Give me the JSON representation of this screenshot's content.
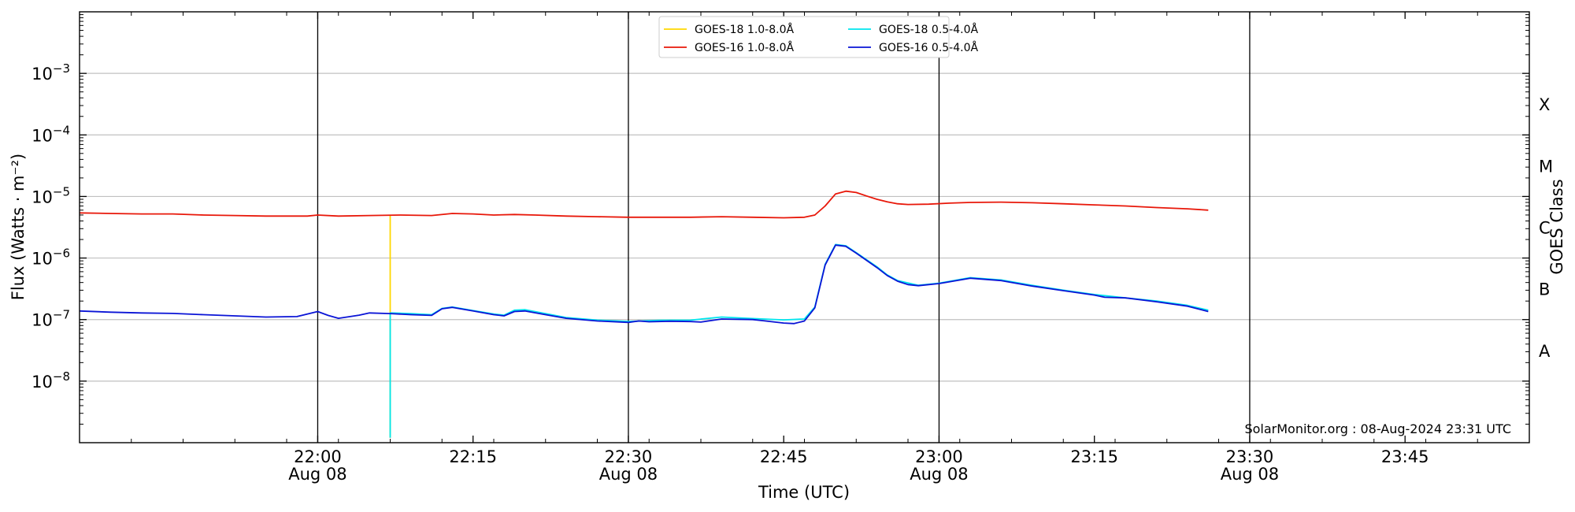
{
  "chart_data": {
    "type": "line",
    "xlabel": "Time (UTC)",
    "ylabel": "Flux (Watts · m⁻²)",
    "ylabel_right": "GOES Class",
    "credit": "SolarMonitor.org : 08-Aug-2024 23:31 UTC",
    "y_scale": "log",
    "ylim": [
      1e-09,
      0.01
    ],
    "xlim": [
      "21:37",
      "23:57"
    ],
    "grid": "horizontal at decades",
    "legend_position": "top-center",
    "x_ticks": [
      {
        "t": "22:00",
        "line1": "22:00",
        "line2": "Aug 08"
      },
      {
        "t": "22:15",
        "line1": "22:15",
        "line2": ""
      },
      {
        "t": "22:30",
        "line1": "22:30",
        "line2": "Aug 08"
      },
      {
        "t": "22:45",
        "line1": "22:45",
        "line2": ""
      },
      {
        "t": "23:00",
        "line1": "23:00",
        "line2": "Aug 08"
      },
      {
        "t": "23:15",
        "line1": "23:15",
        "line2": ""
      },
      {
        "t": "23:30",
        "line1": "23:30",
        "line2": "Aug 08"
      },
      {
        "t": "23:45",
        "line1": "23:45",
        "line2": ""
      }
    ],
    "vertical_lines": [
      "22:00",
      "22:30",
      "23:00",
      "23:30"
    ],
    "y_ticks": [
      {
        "exp": -8,
        "label": "10",
        "sup": "−8"
      },
      {
        "exp": -7,
        "label": "10",
        "sup": "−7"
      },
      {
        "exp": -6,
        "label": "10",
        "sup": "−6"
      },
      {
        "exp": -5,
        "label": "10",
        "sup": "−5"
      },
      {
        "exp": -4,
        "label": "10",
        "sup": "−4"
      },
      {
        "exp": -3,
        "label": "10",
        "sup": "−3"
      }
    ],
    "goes_classes": [
      {
        "label": "A",
        "exp": -7.5
      },
      {
        "label": "B",
        "exp": -6.5
      },
      {
        "label": "C",
        "exp": -5.5
      },
      {
        "label": "M",
        "exp": -4.5
      },
      {
        "label": "X",
        "exp": -3.5
      }
    ],
    "series": [
      {
        "name": "GOES-18 1.0-8.0Å",
        "color": "#ffd700",
        "points": [
          [
            "22:07",
            5e-06
          ],
          [
            "22:07",
            1.2e-09
          ]
        ]
      },
      {
        "name": "GOES-16 1.0-8.0Å",
        "color": "#e8180a",
        "points": [
          [
            "21:37",
            5.4e-06
          ],
          [
            "21:40",
            5.3e-06
          ],
          [
            "21:43",
            5.2e-06
          ],
          [
            "21:46",
            5.2e-06
          ],
          [
            "21:49",
            5e-06
          ],
          [
            "21:52",
            4.9e-06
          ],
          [
            "21:55",
            4.8e-06
          ],
          [
            "21:59",
            4.8e-06
          ],
          [
            "22:00",
            5e-06
          ],
          [
            "22:02",
            4.8e-06
          ],
          [
            "22:05",
            4.9e-06
          ],
          [
            "22:08",
            5e-06
          ],
          [
            "22:11",
            4.9e-06
          ],
          [
            "22:13",
            5.3e-06
          ],
          [
            "22:15",
            5.2e-06
          ],
          [
            "22:17",
            5e-06
          ],
          [
            "22:19",
            5.1e-06
          ],
          [
            "22:21",
            5e-06
          ],
          [
            "22:24",
            4.8e-06
          ],
          [
            "22:27",
            4.7e-06
          ],
          [
            "22:30",
            4.6e-06
          ],
          [
            "22:33",
            4.6e-06
          ],
          [
            "22:36",
            4.6e-06
          ],
          [
            "22:39",
            4.7e-06
          ],
          [
            "22:42",
            4.6e-06
          ],
          [
            "22:45",
            4.5e-06
          ],
          [
            "22:47",
            4.6e-06
          ],
          [
            "22:48",
            5e-06
          ],
          [
            "22:49",
            7e-06
          ],
          [
            "22:50",
            1.1e-05
          ],
          [
            "22:51",
            1.22e-05
          ],
          [
            "22:52",
            1.16e-05
          ],
          [
            "22:53",
            1.02e-05
          ],
          [
            "22:54",
            9e-06
          ],
          [
            "22:55",
            8.2e-06
          ],
          [
            "22:56",
            7.6e-06
          ],
          [
            "22:57",
            7.4e-06
          ],
          [
            "22:59",
            7.5e-06
          ],
          [
            "23:01",
            7.8e-06
          ],
          [
            "23:03",
            8e-06
          ],
          [
            "23:06",
            8.1e-06
          ],
          [
            "23:09",
            7.9e-06
          ],
          [
            "23:12",
            7.6e-06
          ],
          [
            "23:15",
            7.3e-06
          ],
          [
            "23:18",
            7e-06
          ],
          [
            "23:21",
            6.6e-06
          ],
          [
            "23:24",
            6.3e-06
          ],
          [
            "23:26",
            6e-06
          ]
        ]
      },
      {
        "name": "GOES-18 0.5-4.0Å",
        "color": "#00e5ee",
        "points": [
          [
            "22:07",
            1.2e-09
          ],
          [
            "22:07",
            1.28e-07
          ],
          [
            "22:09",
            1.25e-07
          ],
          [
            "22:11",
            1.2e-07
          ],
          [
            "22:12",
            1.52e-07
          ],
          [
            "22:13",
            1.6e-07
          ],
          [
            "22:15",
            1.4e-07
          ],
          [
            "22:17",
            1.23e-07
          ],
          [
            "22:18",
            1.18e-07
          ],
          [
            "22:19",
            1.42e-07
          ],
          [
            "22:20",
            1.45e-07
          ],
          [
            "22:22",
            1.25e-07
          ],
          [
            "22:24",
            1.08e-07
          ],
          [
            "22:27",
            9.8e-08
          ],
          [
            "22:30",
            9.3e-08
          ],
          [
            "22:33",
            9.7e-08
          ],
          [
            "22:36",
            9.8e-08
          ],
          [
            "22:39",
            1.1e-07
          ],
          [
            "22:42",
            1.04e-07
          ],
          [
            "22:45",
            9.9e-08
          ],
          [
            "22:47",
            1.02e-07
          ],
          [
            "22:48",
            1.6e-07
          ],
          [
            "22:49",
            7.9e-07
          ],
          [
            "22:50",
            1.66e-06
          ],
          [
            "22:51",
            1.58e-06
          ],
          [
            "22:52",
            1.22e-06
          ],
          [
            "22:54",
            7.2e-07
          ],
          [
            "22:55",
            5.3e-07
          ],
          [
            "22:56",
            4.3e-07
          ],
          [
            "22:58",
            3.6e-07
          ],
          [
            "23:00",
            3.9e-07
          ],
          [
            "23:03",
            4.8e-07
          ],
          [
            "23:06",
            4.4e-07
          ],
          [
            "23:09",
            3.6e-07
          ],
          [
            "23:12",
            3e-07
          ],
          [
            "23:15",
            2.55e-07
          ],
          [
            "23:18",
            2.25e-07
          ],
          [
            "23:21",
            2e-07
          ],
          [
            "23:24",
            1.7e-07
          ],
          [
            "23:26",
            1.42e-07
          ]
        ]
      },
      {
        "name": "GOES-16 0.5-4.0Å",
        "color": "#0a14d6",
        "points": [
          [
            "21:37",
            1.38e-07
          ],
          [
            "21:40",
            1.32e-07
          ],
          [
            "21:43",
            1.28e-07
          ],
          [
            "21:46",
            1.26e-07
          ],
          [
            "21:49",
            1.2e-07
          ],
          [
            "21:52",
            1.15e-07
          ],
          [
            "21:55",
            1.1e-07
          ],
          [
            "21:58",
            1.12e-07
          ],
          [
            "22:00",
            1.35e-07
          ],
          [
            "22:01",
            1.17e-07
          ],
          [
            "22:02",
            1.05e-07
          ],
          [
            "22:04",
            1.18e-07
          ],
          [
            "22:05",
            1.28e-07
          ],
          [
            "22:07",
            1.25e-07
          ],
          [
            "22:09",
            1.2e-07
          ],
          [
            "22:11",
            1.17e-07
          ],
          [
            "22:12",
            1.5e-07
          ],
          [
            "22:13",
            1.58e-07
          ],
          [
            "22:15",
            1.38e-07
          ],
          [
            "22:17",
            1.2e-07
          ],
          [
            "22:18",
            1.15e-07
          ],
          [
            "22:19",
            1.35e-07
          ],
          [
            "22:20",
            1.38e-07
          ],
          [
            "22:22",
            1.2e-07
          ],
          [
            "22:24",
            1.05e-07
          ],
          [
            "22:27",
            9.5e-08
          ],
          [
            "22:30",
            9e-08
          ],
          [
            "22:31",
            9.5e-08
          ],
          [
            "22:32",
            9.2e-08
          ],
          [
            "22:34",
            9.4e-08
          ],
          [
            "22:36",
            9.3e-08
          ],
          [
            "22:37",
            9.1e-08
          ],
          [
            "22:39",
            1.02e-07
          ],
          [
            "22:42",
            1e-07
          ],
          [
            "22:43",
            9.6e-08
          ],
          [
            "22:45",
            8.8e-08
          ],
          [
            "22:46",
            8.6e-08
          ],
          [
            "22:47",
            9.5e-08
          ],
          [
            "22:48",
            1.55e-07
          ],
          [
            "22:49",
            7.7e-07
          ],
          [
            "22:50",
            1.62e-06
          ],
          [
            "22:51",
            1.55e-06
          ],
          [
            "22:52",
            1.2e-06
          ],
          [
            "22:54",
            7e-07
          ],
          [
            "22:55",
            5.2e-07
          ],
          [
            "22:56",
            4.2e-07
          ],
          [
            "22:57",
            3.7e-07
          ],
          [
            "22:58",
            3.55e-07
          ],
          [
            "23:00",
            3.85e-07
          ],
          [
            "23:03",
            4.7e-07
          ],
          [
            "23:06",
            4.3e-07
          ],
          [
            "23:09",
            3.5e-07
          ],
          [
            "23:12",
            2.95e-07
          ],
          [
            "23:15",
            2.5e-07
          ],
          [
            "23:16",
            2.3e-07
          ],
          [
            "23:18",
            2.25e-07
          ],
          [
            "23:21",
            1.95e-07
          ],
          [
            "23:24",
            1.65e-07
          ],
          [
            "23:26",
            1.35e-07
          ]
        ]
      }
    ]
  }
}
